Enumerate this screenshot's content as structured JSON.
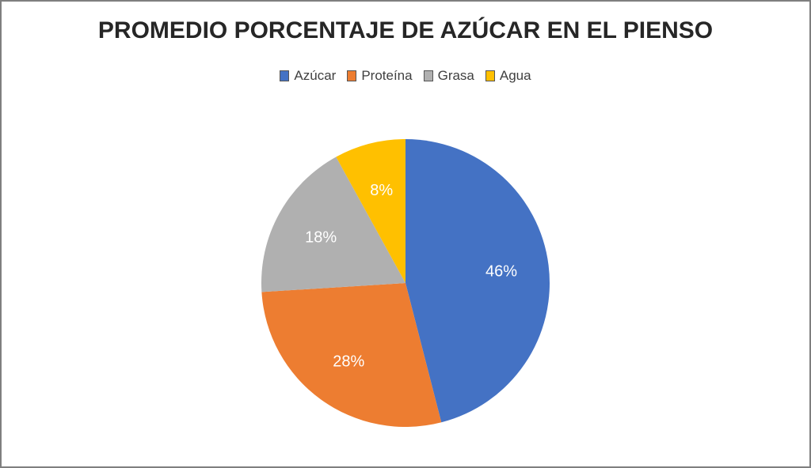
{
  "chart_data": {
    "type": "pie",
    "title": "PROMEDIO PORCENTAJE DE AZÚCAR EN EL PIENSO",
    "categories": [
      "Azúcar",
      "Proteína",
      "Grasa",
      "Agua"
    ],
    "values": [
      46,
      28,
      18,
      8
    ],
    "labels": [
      "46%",
      "28%",
      "18%",
      "8%"
    ],
    "colors": [
      "#4472c4",
      "#ed7d31",
      "#b0b0b0",
      "#ffc000"
    ],
    "legend_position": "top"
  },
  "legend": [
    {
      "label": "Azúcar",
      "color": "#4472c4"
    },
    {
      "label": "Proteína",
      "color": "#ed7d31"
    },
    {
      "label": "Grasa",
      "color": "#b0b0b0"
    },
    {
      "label": "Agua",
      "color": "#ffc000"
    }
  ]
}
